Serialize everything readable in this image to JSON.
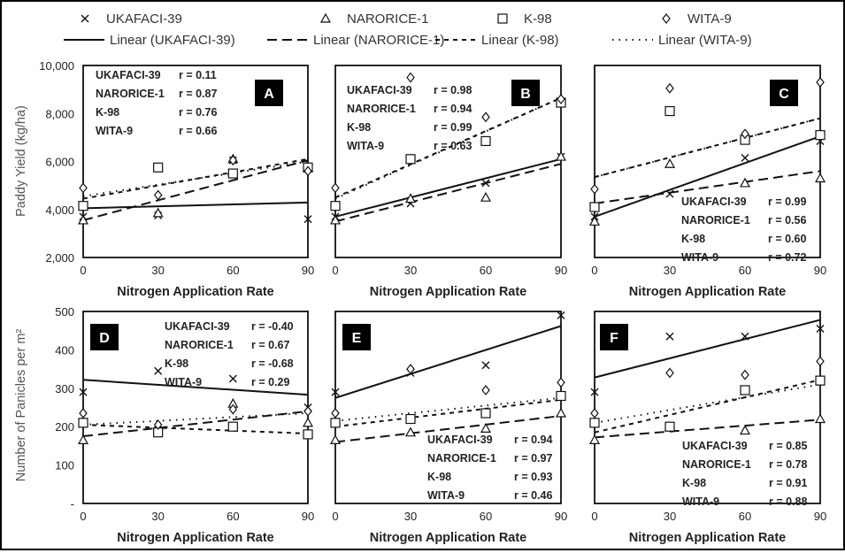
{
  "legend": {
    "series": [
      "UKAFACI-39",
      "NARORICE-1",
      "K-98",
      "WITA-9"
    ],
    "fits": [
      "Linear (UKAFACI-39)",
      "Linear (NARORICE-1)",
      "Linear (K-98)",
      "Linear (WITA-9)"
    ]
  },
  "shared": {
    "xlabel": "Nitrogen Application Rate",
    "ylabel_top": "Paddy Yield (kg/ha)",
    "ylabel_bottom": "Number of Panicles per m²",
    "x_ticks": [
      "0",
      "30",
      "60",
      "90"
    ],
    "yticks_top": [
      "2,000",
      "4,000",
      "6,000",
      "8,000",
      "10,000"
    ],
    "yticks_bottom": [
      "-",
      "100",
      "200",
      "300",
      "400",
      "500"
    ]
  },
  "chart_data": [
    {
      "type": "scatter",
      "panel": "A",
      "x": [
        0,
        30,
        60,
        90
      ],
      "xlim": [
        0,
        90
      ],
      "ylim": [
        2000,
        10000
      ],
      "xlabel": "Nitrogen Application Rate",
      "ylabel": "Paddy Yield (kg/ha)",
      "series": [
        {
          "name": "UKAFACI-39",
          "marker": "x",
          "values": [
            3700,
            3750,
            6050,
            3600
          ],
          "fit": [
            4050,
            4290
          ],
          "r": "r = 0.11"
        },
        {
          "name": "NARORICE-1",
          "marker": "triangle",
          "values": [
            3550,
            3850,
            6100,
            5750
          ],
          "fit": [
            3550,
            6050
          ],
          "r": "r = 0.87"
        },
        {
          "name": "K-98",
          "marker": "square",
          "values": [
            4150,
            5750,
            5500,
            5750
          ],
          "fit": [
            4450,
            6100
          ],
          "r": "r = 0.76"
        },
        {
          "name": "WITA-9",
          "marker": "diamond",
          "values": [
            4900,
            4600,
            6050,
            5600
          ],
          "fit": [
            4550,
            6000
          ],
          "r": "r = 0.66"
        }
      ]
    },
    {
      "type": "scatter",
      "panel": "B",
      "x": [
        0,
        30,
        60,
        90
      ],
      "xlim": [
        0,
        90
      ],
      "ylim": [
        2000,
        10000
      ],
      "xlabel": "Nitrogen Application Rate",
      "ylabel": "",
      "series": [
        {
          "name": "UKAFACI-39",
          "marker": "x",
          "values": [
            3700,
            4250,
            5100,
            6200
          ],
          "fit": [
            3700,
            6100
          ],
          "r": "r = 0.98"
        },
        {
          "name": "NARORICE-1",
          "marker": "triangle",
          "values": [
            3550,
            4450,
            4500,
            6200
          ],
          "fit": [
            3500,
            5900
          ],
          "r": "r = 0.94"
        },
        {
          "name": "K-98",
          "marker": "square",
          "values": [
            4150,
            6100,
            6850,
            8450
          ],
          "fit": [
            4500,
            8650
          ],
          "r": "r = 0.99"
        },
        {
          "name": "WITA-9",
          "marker": "diamond",
          "values": [
            4900,
            9500,
            7850,
            8600
          ],
          "fit": [
            4450,
            8650
          ],
          "r": "r = 0.63"
        }
      ]
    },
    {
      "type": "scatter",
      "panel": "C",
      "x": [
        0,
        30,
        60,
        90
      ],
      "xlim": [
        0,
        90
      ],
      "ylim": [
        2000,
        10000
      ],
      "xlabel": "Nitrogen Application Rate",
      "ylabel": "",
      "series": [
        {
          "name": "UKAFACI-39",
          "marker": "x",
          "values": [
            3700,
            4650,
            6150,
            6850
          ],
          "fit": [
            3700,
            7050
          ],
          "r": "r = 0.99"
        },
        {
          "name": "NARORICE-1",
          "marker": "triangle",
          "values": [
            3500,
            5900,
            5100,
            5300
          ],
          "fit": [
            4250,
            5600
          ],
          "r": "r = 0.56"
        },
        {
          "name": "K-98",
          "marker": "square",
          "values": [
            4100,
            8100,
            6900,
            7100
          ],
          "fit": [
            5350,
            7800
          ],
          "r": "r = 0.60"
        },
        {
          "name": "WITA-9",
          "marker": "diamond",
          "values": [
            4850,
            9050,
            7150,
            9300
          ],
          "fit": [
            5350,
            7800
          ],
          "r": "r = 0.72"
        }
      ]
    },
    {
      "type": "scatter",
      "panel": "D",
      "x": [
        0,
        30,
        60,
        90
      ],
      "xlim": [
        0,
        90
      ],
      "ylim": [
        0,
        500
      ],
      "xlabel": "Nitrogen Application Rate",
      "ylabel": "Number of Panicles per m²",
      "series": [
        {
          "name": "UKAFACI-39",
          "marker": "x",
          "values": [
            290,
            345,
            325,
            250
          ],
          "fit": [
            322,
            283
          ],
          "r": "r = -0.40"
        },
        {
          "name": "NARORICE-1",
          "marker": "triangle",
          "values": [
            165,
            200,
            260,
            210
          ],
          "fit": [
            175,
            240
          ],
          "r": "r = 0.67"
        },
        {
          "name": "K-98",
          "marker": "square",
          "values": [
            210,
            185,
            200,
            180
          ],
          "fit": [
            205,
            182
          ],
          "r": "r = -0.68"
        },
        {
          "name": "WITA-9",
          "marker": "diamond",
          "values": [
            235,
            205,
            245,
            240
          ],
          "fit": [
            205,
            235
          ],
          "r": "r = 0.29"
        }
      ]
    },
    {
      "type": "scatter",
      "panel": "E",
      "x": [
        0,
        30,
        60,
        90
      ],
      "xlim": [
        0,
        90
      ],
      "ylim": [
        0,
        500
      ],
      "xlabel": "Nitrogen Application Rate",
      "ylabel": "",
      "series": [
        {
          "name": "UKAFACI-39",
          "marker": "x",
          "values": [
            290,
            340,
            360,
            490
          ],
          "fit": [
            275,
            462
          ],
          "r": "r = 0.94"
        },
        {
          "name": "NARORICE-1",
          "marker": "triangle",
          "values": [
            165,
            185,
            195,
            235
          ],
          "fit": [
            160,
            228
          ],
          "r": "r = 0.97"
        },
        {
          "name": "K-98",
          "marker": "square",
          "values": [
            210,
            220,
            235,
            280
          ],
          "fit": [
            200,
            270
          ],
          "r": "r = 0.93"
        },
        {
          "name": "WITA-9",
          "marker": "diamond",
          "values": [
            235,
            350,
            295,
            315
          ],
          "fit": [
            215,
            275
          ],
          "r": "r = 0.46"
        }
      ]
    },
    {
      "type": "scatter",
      "panel": "F",
      "x": [
        0,
        30,
        60,
        90
      ],
      "xlim": [
        0,
        90
      ],
      "ylim": [
        0,
        500
      ],
      "xlabel": "Nitrogen Application Rate",
      "ylabel": "",
      "series": [
        {
          "name": "UKAFACI-39",
          "marker": "x",
          "values": [
            290,
            435,
            435,
            455
          ],
          "fit": [
            328,
            478
          ],
          "r": "r = 0.85"
        },
        {
          "name": "NARORICE-1",
          "marker": "triangle",
          "values": [
            165,
            200,
            190,
            220
          ],
          "fit": [
            172,
            218
          ],
          "r": "r = 0.78"
        },
        {
          "name": "K-98",
          "marker": "square",
          "values": [
            210,
            200,
            295,
            320
          ],
          "fit": [
            185,
            322
          ],
          "r": "r = 0.91"
        },
        {
          "name": "WITA-9",
          "marker": "diamond",
          "values": [
            235,
            340,
            335,
            370
          ],
          "fit": [
            210,
            310
          ],
          "r": "r = 0.88"
        }
      ]
    }
  ]
}
